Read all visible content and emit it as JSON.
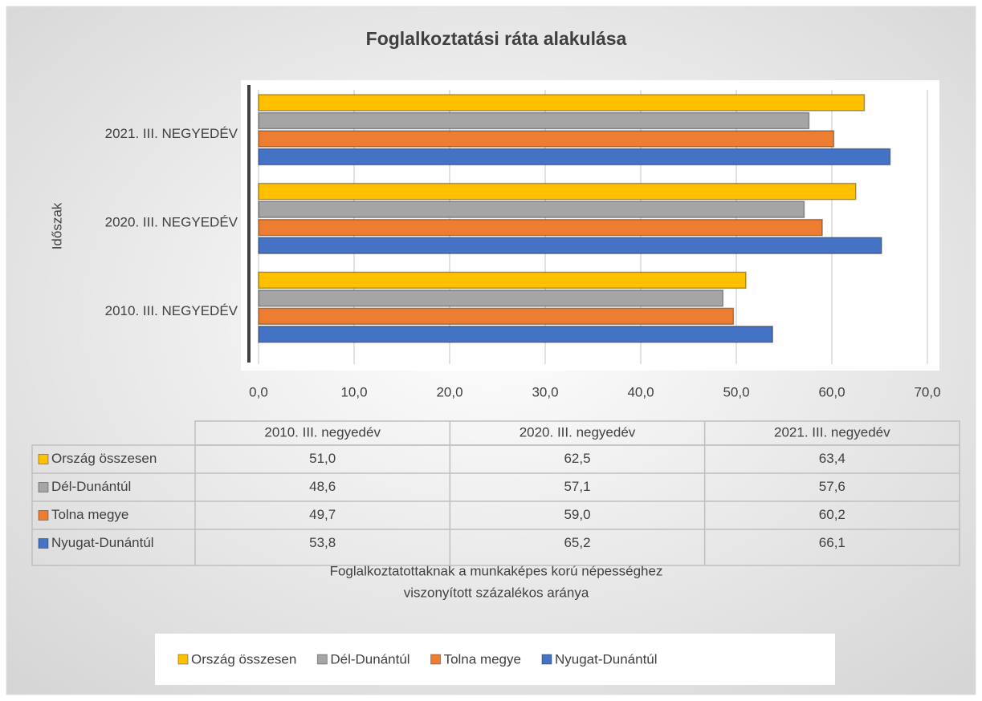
{
  "chart_data": {
    "type": "bar",
    "orientation": "horizontal",
    "title": "Foglalkoztatási ráta alakulása",
    "x_label": [
      "Foglalkoztatottaknak a munkaképes korú népességhez",
      "viszonyított százalékos aránya"
    ],
    "y_label": "Időszak",
    "categories": [
      "2010. III. negyedév",
      "2020. III. negyedév",
      "2021. III. negyedév"
    ],
    "series": [
      {
        "name": "Ország összesen",
        "color": "#FFC000",
        "values": [
          51.0,
          62.5,
          63.4
        ],
        "value_labels": [
          "51,0",
          "62,5",
          "63,4"
        ]
      },
      {
        "name": "Dél-Dunántúl",
        "color": "#A5A5A5",
        "values": [
          48.6,
          57.1,
          57.6
        ],
        "value_labels": [
          "48,6",
          "57,1",
          "57,6"
        ]
      },
      {
        "name": "Tolna megye",
        "color": "#ED7D31",
        "values": [
          49.7,
          59.0,
          60.2
        ],
        "value_labels": [
          "49,7",
          "59,0",
          "60,2"
        ]
      },
      {
        "name": "Nyugat-Dunántúl",
        "color": "#4472C4",
        "values": [
          53.8,
          65.2,
          66.1
        ],
        "value_labels": [
          "53,8",
          "65,2",
          "66,1"
        ]
      }
    ],
    "xlim": [
      0,
      70
    ],
    "xticks": [
      {
        "value": 0,
        "label": "0,0"
      },
      {
        "value": 10,
        "label": "10,0"
      },
      {
        "value": 20,
        "label": "20,0"
      },
      {
        "value": 30,
        "label": "30,0"
      },
      {
        "value": 40,
        "label": "40,0"
      },
      {
        "value": 50,
        "label": "50,0"
      },
      {
        "value": 60,
        "label": "60,0"
      },
      {
        "value": 70,
        "label": "70,0"
      }
    ],
    "grid": true,
    "legend": "bottom",
    "data_table": true
  }
}
